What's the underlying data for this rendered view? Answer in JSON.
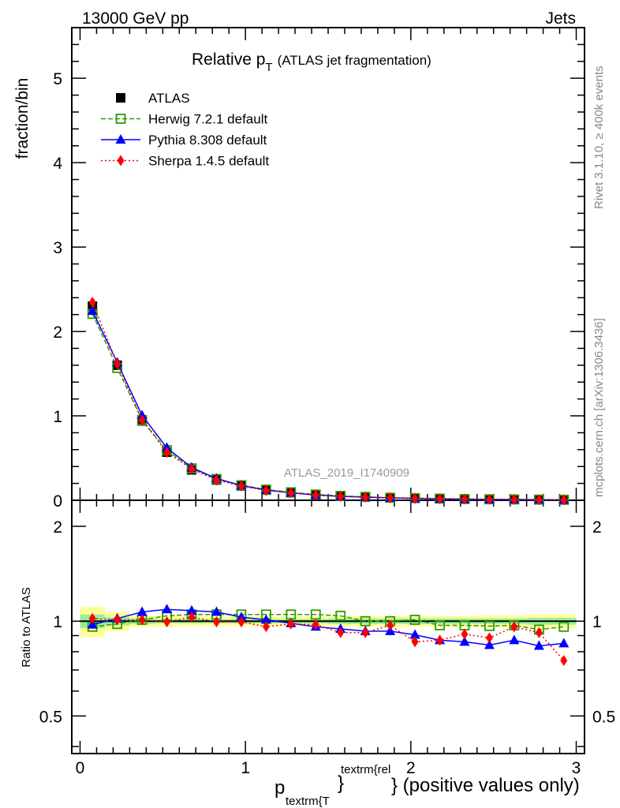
{
  "header": {
    "left": "13000 GeV pp",
    "right": "Jets"
  },
  "side_labels": {
    "rivet": "Rivet 3.1.10, ≥ 400k events",
    "mcplots": "mcplots.cern.ch [arXiv:1306.3436]"
  },
  "chart_data": {
    "type": "line",
    "title_main": "Relative p",
    "title_sub": "T",
    "title_rest": "(ATLAS jet fragmentation)",
    "watermark": "ATLAS_2019_I1740909",
    "ylabel": "fraction/bin",
    "ratio_ylabel": "Ratio to ATLAS",
    "xlabel_parts": {
      "p": "p",
      "sub": "textrm{T",
      "brace1": "}",
      "sup": "textrm{rel",
      "rest": "} (positive values only)"
    },
    "xlim": [
      -0.05,
      3.05
    ],
    "ylim": [
      0,
      5.6
    ],
    "ratio_ylim": [
      0.38,
      2.42
    ],
    "ratio_scale": "log",
    "x_ticks": [
      "0",
      "1",
      "2",
      "3"
    ],
    "y_ticks": [
      "0",
      "1",
      "2",
      "3",
      "4",
      "5"
    ],
    "ratio_ticks": [
      "0.5",
      "1",
      "2"
    ],
    "legend_placement": "top-left",
    "x": [
      0.075,
      0.225,
      0.375,
      0.525,
      0.675,
      0.825,
      0.975,
      1.125,
      1.275,
      1.425,
      1.575,
      1.725,
      1.875,
      2.025,
      2.175,
      2.325,
      2.475,
      2.625,
      2.775,
      2.925
    ],
    "data": {
      "name": "ATLAS",
      "values": [
        2.3,
        1.6,
        0.94,
        0.57,
        0.36,
        0.24,
        0.17,
        0.12,
        0.09,
        0.065,
        0.05,
        0.04,
        0.03,
        0.025,
        0.02,
        0.015,
        0.012,
        0.01,
        0.008,
        0.006
      ],
      "band_total": [
        0.11,
        0.07,
        0.04,
        0.04,
        0.035,
        0.035,
        0.035,
        0.035,
        0.035,
        0.035,
        0.04,
        0.04,
        0.04,
        0.04,
        0.04,
        0.04,
        0.045,
        0.045,
        0.05,
        0.05
      ],
      "band_stat": [
        0.05,
        0.03,
        0.02,
        0.015,
        0.015,
        0.015,
        0.015,
        0.015,
        0.015,
        0.015,
        0.02,
        0.02,
        0.02,
        0.02,
        0.02,
        0.02,
        0.02,
        0.02,
        0.025,
        0.025
      ]
    },
    "series": [
      {
        "name": "Herwig 7.2.1 default",
        "color": "#339900",
        "style": "dashed",
        "marker": "open-square",
        "ratio": [
          0.96,
          0.98,
          1.01,
          1.04,
          1.05,
          1.05,
          1.05,
          1.05,
          1.05,
          1.05,
          1.04,
          1.0,
          1.0,
          1.01,
          0.97,
          0.97,
          0.965,
          0.97,
          0.94,
          0.96
        ]
      },
      {
        "name": "Pythia 8.308 default",
        "color": "#0000ff",
        "style": "solid",
        "marker": "triangle",
        "ratio": [
          0.975,
          1.02,
          1.07,
          1.09,
          1.08,
          1.07,
          1.03,
          1.01,
          0.985,
          0.96,
          0.945,
          0.93,
          0.93,
          0.905,
          0.87,
          0.86,
          0.84,
          0.87,
          0.835,
          0.85
        ]
      },
      {
        "name": "Sherpa 1.4.5 default",
        "color": "#ff0000",
        "style": "dotted",
        "marker": "diamond",
        "ratio": [
          1.02,
          1.01,
          1.01,
          0.995,
          1.03,
          0.995,
          0.995,
          0.96,
          0.98,
          0.975,
          0.92,
          0.92,
          0.97,
          0.86,
          0.87,
          0.91,
          0.885,
          0.96,
          0.92,
          0.75
        ]
      }
    ]
  }
}
